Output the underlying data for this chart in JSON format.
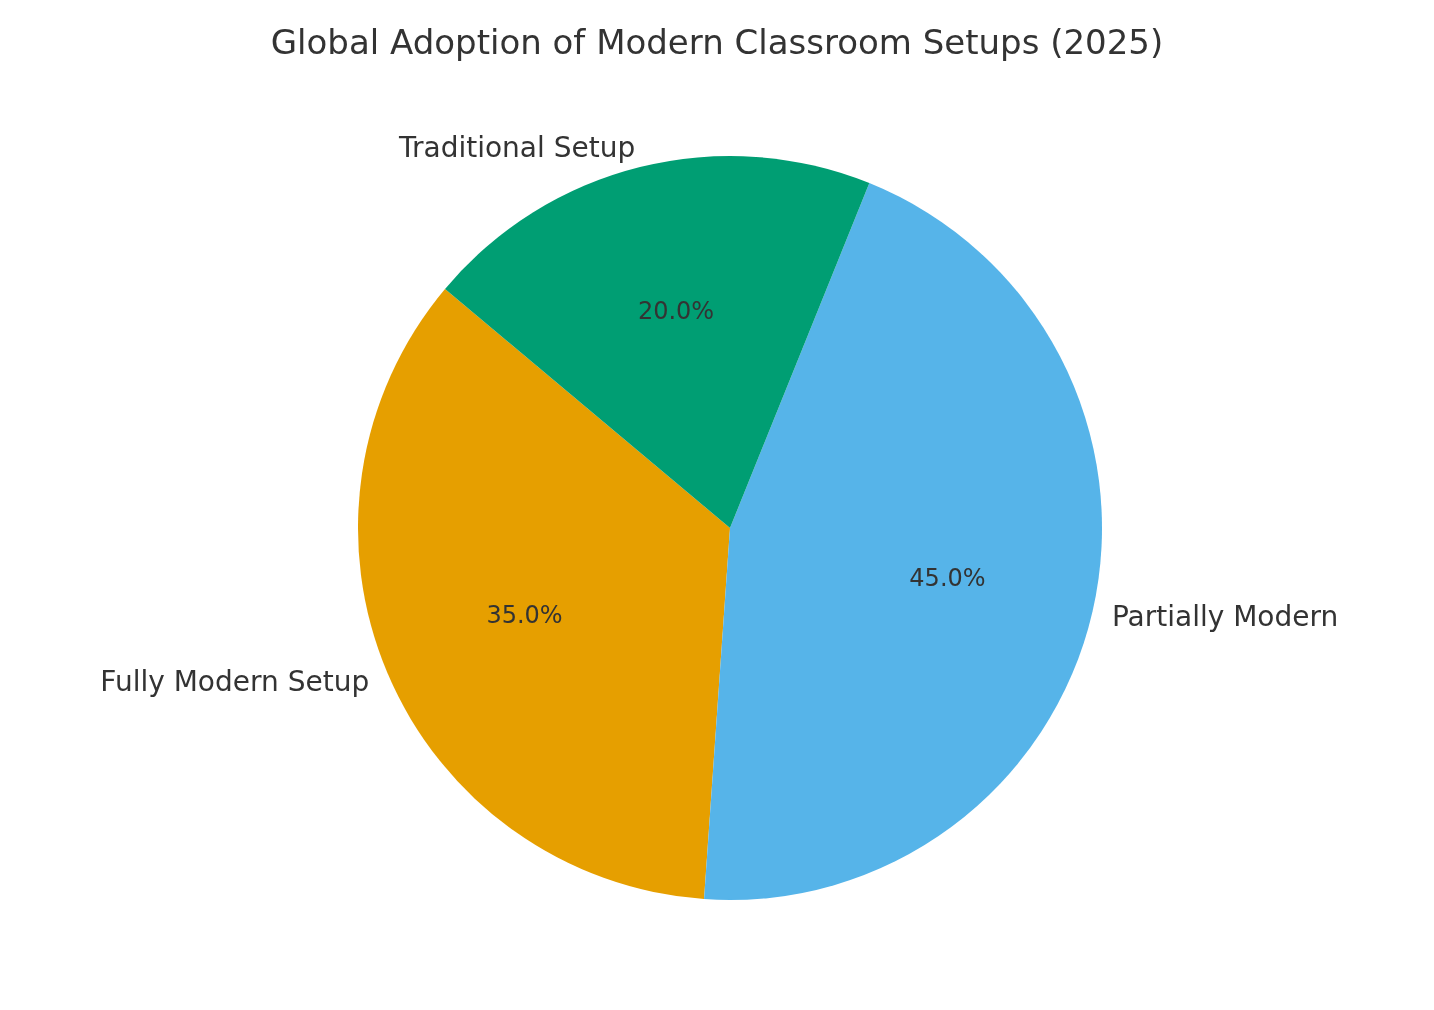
{
  "chart_data": {
    "type": "pie",
    "title": "Global Adoption of Modern Classroom Setups (2025)",
    "categories": [
      "Fully Modern Setup",
      "Partially Modern",
      "Traditional Setup"
    ],
    "values": [
      35,
      45,
      20
    ],
    "colors": [
      "#e69f00",
      "#56b4e9",
      "#009e73"
    ],
    "value_labels": [
      "35.0%",
      "45.0%",
      "20.0%"
    ],
    "legend": false
  }
}
